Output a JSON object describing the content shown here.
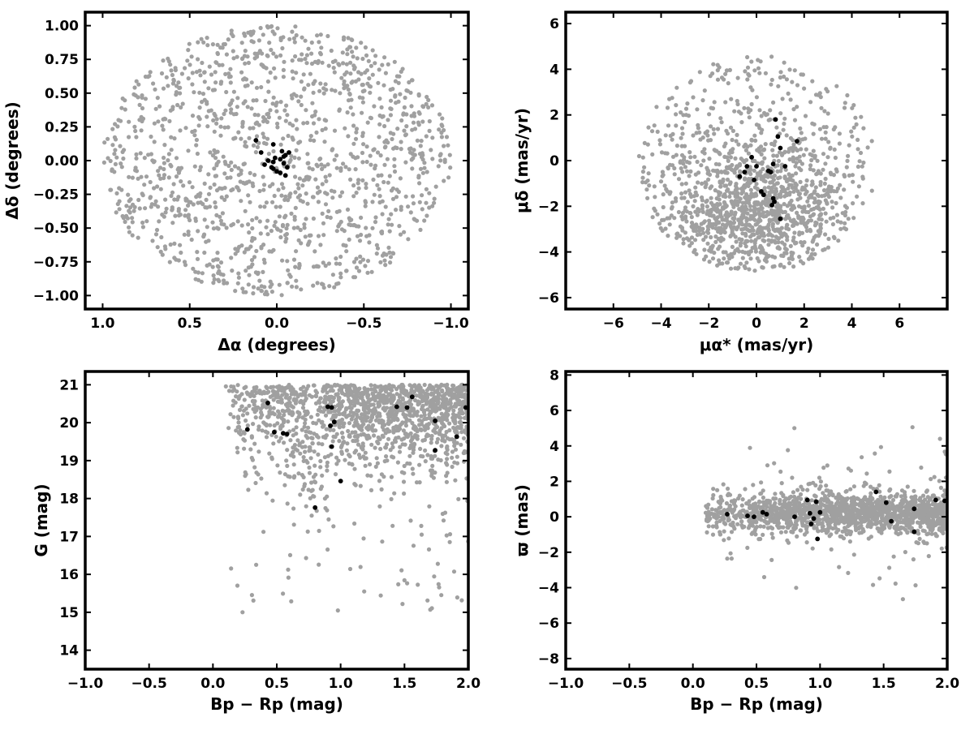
{
  "figure": {
    "colors": {
      "field_stars": "#a0a0a0",
      "cluster_members": "#000000",
      "frame": "#000000"
    }
  },
  "chart_data": [
    {
      "type": "scatter",
      "xlabel": "Δα (degrees)",
      "ylabel": "Δδ (degrees)",
      "xlim": [
        1.1,
        -1.1
      ],
      "ylim": [
        -1.1,
        1.1
      ],
      "x_inverted": true,
      "xticks": [
        1.0,
        0.5,
        0.0,
        -0.5,
        -1.0
      ],
      "xtick_labels": [
        "1.0",
        "0.5",
        "0.0",
        "−0.5",
        "−1.0"
      ],
      "yticks": [
        -1.0,
        -0.75,
        -0.5,
        -0.25,
        0.0,
        0.25,
        0.5,
        0.75,
        1.0
      ],
      "ytick_labels": [
        "−1.00",
        "−0.75",
        "−0.50",
        "−0.25",
        "0.00",
        "0.25",
        "0.50",
        "0.75",
        "1.00"
      ],
      "grid": false,
      "field_distribution": {
        "shape": "disk",
        "center": [
          0.0,
          0.0
        ],
        "radius": 1.0,
        "count": 1350
      },
      "series": [
        {
          "points": [
            [
              0.02,
              0.12
            ],
            [
              0.12,
              0.15
            ],
            [
              0.09,
              0.06
            ],
            [
              -0.03,
              0.07
            ],
            [
              -0.05,
              0.04
            ],
            [
              -0.07,
              0.06
            ],
            [
              0.01,
              0.02
            ],
            [
              0.02,
              -0.01
            ],
            [
              -0.02,
              0.01
            ],
            [
              -0.04,
              -0.02
            ],
            [
              0.03,
              -0.05
            ],
            [
              0.0,
              -0.08
            ],
            [
              -0.02,
              -0.09
            ],
            [
              -0.05,
              -0.11
            ],
            [
              0.07,
              -0.03
            ],
            [
              0.02,
              -0.06
            ],
            [
              -0.06,
              -0.05
            ],
            [
              0.05,
              0.0
            ],
            [
              -0.04,
              0.03
            ]
          ]
        }
      ]
    },
    {
      "type": "scatter",
      "xlabel": "μα* (mas/yr)",
      "ylabel": "μδ (mas/yr)",
      "xlim": [
        -8.0,
        8.0
      ],
      "ylim": [
        -6.5,
        6.5
      ],
      "xticks": [
        -6,
        -4,
        -2,
        0,
        2,
        4,
        6
      ],
      "xtick_labels": [
        "−6",
        "−4",
        "−2",
        "0",
        "2",
        "4",
        "6"
      ],
      "yticks": [
        -6,
        -4,
        -2,
        0,
        2,
        4,
        6
      ],
      "ytick_labels": [
        "−6",
        "−4",
        "−2",
        "0",
        "2",
        "4",
        "6"
      ],
      "grid": false,
      "field_distribution": {
        "shape": "clumped",
        "center": [
          0.0,
          -2.2
        ],
        "spread": [
          1.8,
          1.6
        ],
        "x_range": [
          -5.0,
          5.0
        ],
        "y_range": [
          -4.9,
          4.6
        ],
        "count": 1400
      },
      "series": [
        {
          "points": [
            [
              0.8,
              1.8
            ],
            [
              1.7,
              0.85
            ],
            [
              0.9,
              1.05
            ],
            [
              1.0,
              0.55
            ],
            [
              -0.2,
              0.15
            ],
            [
              -0.4,
              -0.25
            ],
            [
              0.0,
              -0.25
            ],
            [
              0.7,
              -0.15
            ],
            [
              -0.5,
              -0.5
            ],
            [
              0.5,
              -0.45
            ],
            [
              0.6,
              -0.5
            ],
            [
              1.2,
              -0.25
            ],
            [
              -0.7,
              -0.7
            ],
            [
              -0.1,
              -0.85
            ],
            [
              0.2,
              -1.35
            ],
            [
              0.3,
              -1.5
            ],
            [
              0.7,
              -1.65
            ],
            [
              0.75,
              -1.8
            ],
            [
              0.65,
              -1.95
            ],
            [
              1.0,
              -2.55
            ]
          ]
        }
      ]
    },
    {
      "type": "scatter",
      "xlabel": "Bp − Rp (mag)",
      "ylabel": "G (mag)",
      "xlim": [
        -1.0,
        2.0
      ],
      "ylim": [
        13.5,
        21.35
      ],
      "xticks": [
        -1.0,
        -0.5,
        0.0,
        0.5,
        1.0,
        1.5,
        2.0
      ],
      "xtick_labels": [
        "−1.0",
        "−0.5",
        "0.0",
        "0.5",
        "1.0",
        "1.5",
        "2.0"
      ],
      "yticks": [
        14,
        15,
        16,
        17,
        18,
        19,
        20,
        21
      ],
      "ytick_labels": [
        "14",
        "15",
        "16",
        "17",
        "18",
        "19",
        "20",
        "21"
      ],
      "grid": false,
      "field_distribution": {
        "shape": "color-magnitude",
        "x_range": [
          0.1,
          2.0
        ],
        "y_range": [
          13.8,
          21.0
        ],
        "count": 1500
      },
      "series": [
        {
          "points": [
            [
              0.43,
              20.52
            ],
            [
              1.44,
              20.42
            ],
            [
              1.52,
              20.4
            ],
            [
              1.56,
              20.68
            ],
            [
              0.9,
              20.42
            ],
            [
              0.93,
              20.4
            ],
            [
              1.98,
              20.4
            ],
            [
              0.27,
              19.82
            ],
            [
              0.48,
              19.75
            ],
            [
              0.55,
              19.72
            ],
            [
              0.58,
              19.7
            ],
            [
              0.92,
              19.92
            ],
            [
              0.95,
              20.02
            ],
            [
              1.74,
              20.05
            ],
            [
              0.93,
              19.37
            ],
            [
              1.74,
              19.27
            ],
            [
              1.91,
              19.63
            ],
            [
              1.0,
              18.46
            ],
            [
              0.8,
              17.76
            ]
          ]
        }
      ]
    },
    {
      "type": "scatter",
      "xlabel": "Bp − Rp (mag)",
      "ylabel": "ϖ (mas)",
      "xlim": [
        -1.0,
        2.0
      ],
      "ylim": [
        -8.6,
        8.2
      ],
      "xticks": [
        -1.0,
        -0.5,
        0.0,
        0.5,
        1.0,
        1.5,
        2.0
      ],
      "xtick_labels": [
        "−1.0",
        "−0.5",
        "0.0",
        "0.5",
        "1.0",
        "1.5",
        "2.0"
      ],
      "yticks": [
        -8,
        -6,
        -4,
        -2,
        0,
        2,
        4,
        6,
        8
      ],
      "ytick_labels": [
        "−8",
        "−6",
        "−4",
        "−2",
        "0",
        "2",
        "4",
        "6",
        "8"
      ],
      "grid": false,
      "field_distribution": {
        "shape": "band",
        "x_range": [
          0.1,
          2.0
        ],
        "center_y": 0.2,
        "count": 1500
      },
      "series": [
        {
          "points": [
            [
              0.27,
              0.15
            ],
            [
              0.43,
              0.05
            ],
            [
              0.48,
              0.0
            ],
            [
              0.55,
              0.25
            ],
            [
              0.58,
              0.15
            ],
            [
              0.8,
              0.0
            ],
            [
              0.9,
              0.95
            ],
            [
              0.92,
              0.2
            ],
            [
              0.93,
              -0.4
            ],
            [
              0.95,
              -0.1
            ],
            [
              0.97,
              0.85
            ],
            [
              0.98,
              -1.25
            ],
            [
              1.0,
              0.25
            ],
            [
              1.44,
              1.4
            ],
            [
              1.52,
              0.8
            ],
            [
              1.56,
              -0.25
            ],
            [
              1.74,
              0.45
            ],
            [
              1.74,
              -0.85
            ],
            [
              1.91,
              0.95
            ],
            [
              1.98,
              0.9
            ]
          ]
        }
      ]
    }
  ]
}
